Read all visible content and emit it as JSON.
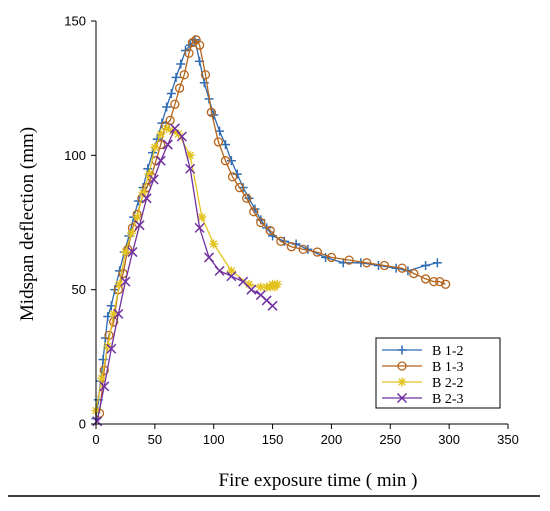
{
  "chart_data": {
    "type": "line",
    "xlabel": "Fire exposure time ( min )",
    "ylabel": "Midspan deflection  (mm)",
    "xlim": [
      0,
      350
    ],
    "ylim": [
      0,
      150
    ],
    "xticks": [
      0,
      50,
      100,
      150,
      200,
      250,
      300,
      350
    ],
    "yticks": [
      0,
      50,
      100,
      150
    ],
    "grid": false,
    "legend_position": "bottom-right",
    "series": [
      {
        "name": "B 1-2",
        "marker": "plus",
        "color": "#2e6bb3",
        "x": [
          0,
          2,
          4,
          6,
          8,
          10,
          13,
          16,
          20,
          24,
          28,
          32,
          36,
          40,
          44,
          48,
          52,
          56,
          60,
          64,
          68,
          72,
          76,
          80,
          84,
          88,
          92,
          96,
          100,
          105,
          110,
          115,
          120,
          125,
          130,
          135,
          140,
          145,
          150,
          160,
          170,
          180,
          195,
          210,
          225,
          240,
          255,
          265,
          280,
          290
        ],
        "y": [
          2,
          9,
          16,
          24,
          32,
          40,
          44,
          50,
          57,
          64,
          70,
          77,
          83,
          88,
          95,
          101,
          106,
          112,
          118,
          123,
          129,
          134,
          139,
          141,
          143,
          135,
          127,
          121,
          115,
          109,
          104,
          98,
          93,
          88,
          84,
          80,
          76,
          73,
          70,
          68,
          67,
          65,
          62,
          60,
          60,
          59,
          58,
          57,
          59,
          60
        ]
      },
      {
        "name": "B 1-3",
        "marker": "circle",
        "color": "#b5651d",
        "x": [
          3,
          7,
          11,
          15,
          19,
          23,
          27,
          31,
          35,
          39,
          43,
          47,
          51,
          55,
          59,
          63,
          67,
          71,
          75,
          79,
          82,
          85,
          88,
          93,
          98,
          104,
          110,
          116,
          122,
          128,
          134,
          140,
          148,
          157,
          166,
          176,
          188,
          200,
          215,
          230,
          245,
          260,
          270,
          280,
          287,
          292,
          297
        ],
        "y": [
          4,
          20,
          33,
          38,
          50,
          56,
          65,
          73,
          78,
          84,
          88,
          92,
          98,
          104,
          111,
          113,
          119,
          125,
          130,
          138,
          142,
          143,
          141,
          130,
          116,
          105,
          98,
          92,
          88,
          84,
          79,
          75,
          72,
          68,
          66,
          65,
          64,
          62,
          61,
          60,
          59,
          58,
          56,
          54,
          53,
          53,
          52
        ]
      },
      {
        "name": "B 2-2",
        "marker": "asterisk",
        "color": "#e3c21f",
        "x": [
          0,
          5,
          10,
          15,
          20,
          25,
          30,
          35,
          40,
          45,
          50,
          55,
          60,
          65,
          70,
          80,
          90,
          100,
          115,
          130,
          140,
          145,
          148,
          150,
          152,
          154
        ],
        "y": [
          5,
          17,
          29,
          41,
          52,
          64,
          71,
          77,
          86,
          93,
          103,
          108,
          110,
          109,
          108,
          100,
          77,
          67,
          57,
          52,
          51,
          51,
          51,
          52,
          51,
          52
        ]
      },
      {
        "name": "B 2-3",
        "marker": "cross",
        "color": "#7030a0",
        "x": [
          1,
          7,
          13,
          19,
          25,
          31,
          37,
          43,
          49,
          55,
          61,
          67,
          73,
          80,
          88,
          96,
          105,
          115,
          125,
          132,
          140,
          145,
          150
        ],
        "y": [
          1,
          14,
          28,
          41,
          53,
          64,
          74,
          84,
          91,
          98,
          104,
          110,
          107,
          95,
          73,
          62,
          57,
          55,
          53,
          50,
          48,
          46,
          44
        ]
      }
    ]
  }
}
